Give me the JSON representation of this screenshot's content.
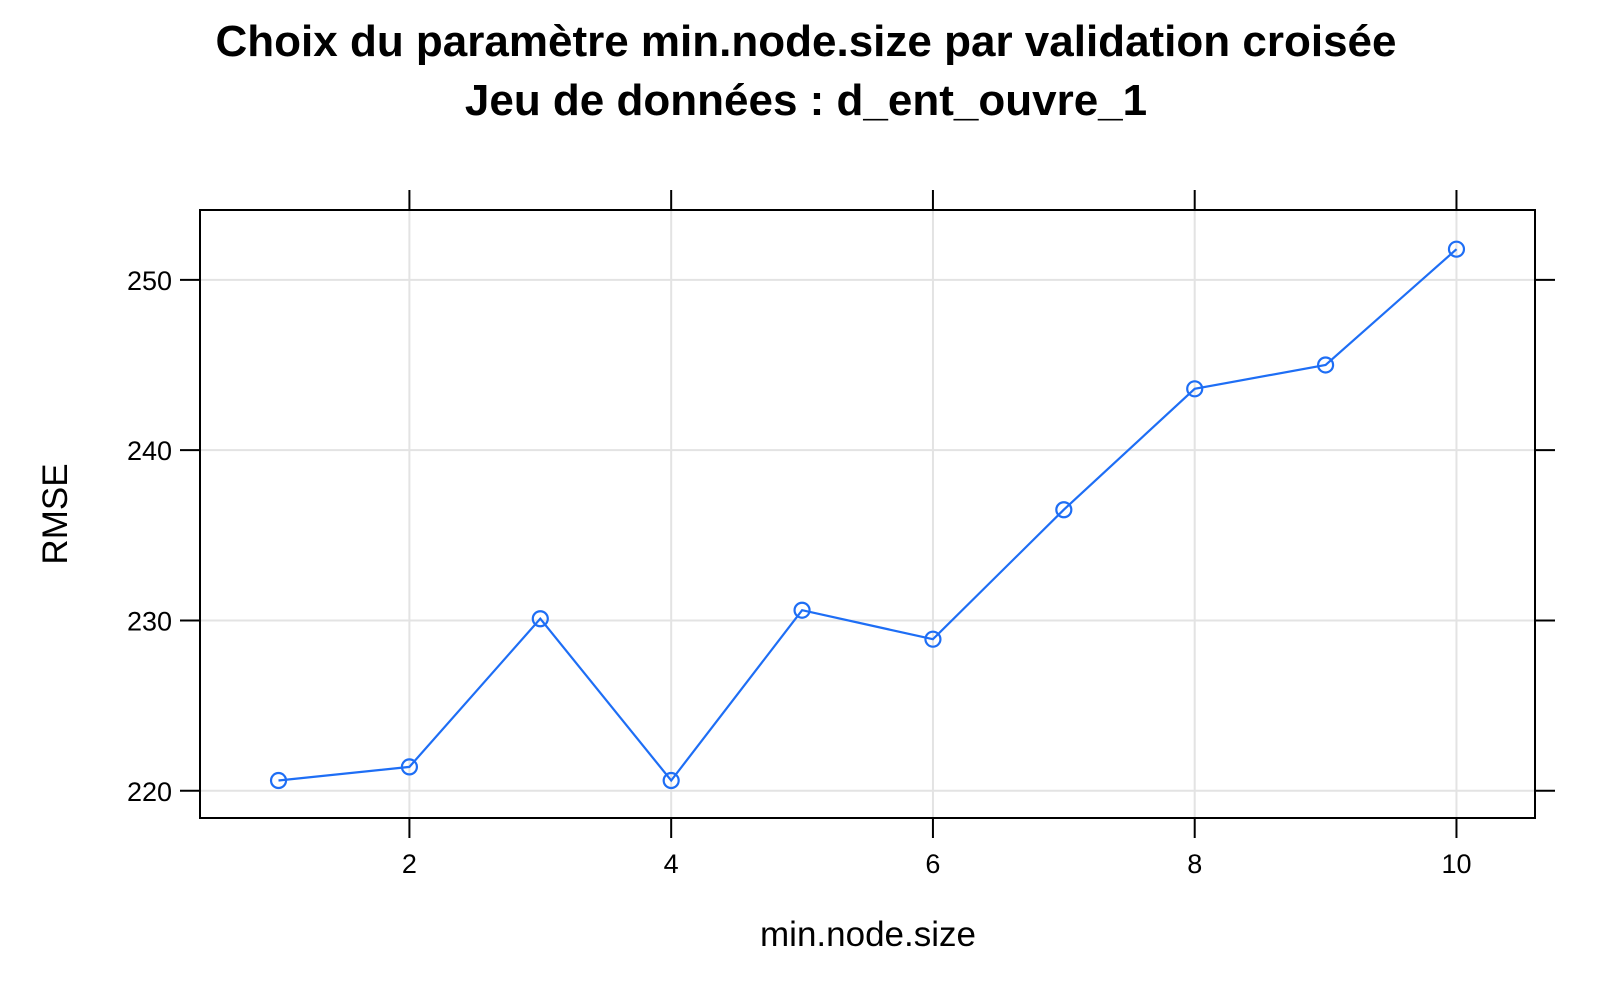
{
  "chart_data": {
    "type": "line",
    "title": "Choix du paramètre min.node.size par validation croisée",
    "subtitle": "Jeu de données : d_ent_ouvre_1",
    "xlabel": "min.node.size",
    "ylabel": "RMSE",
    "xlim": [
      0.4,
      10.6
    ],
    "ylim": [
      218.4,
      254.1
    ],
    "x_ticks": [
      2,
      4,
      6,
      8,
      10
    ],
    "y_ticks": [
      220,
      230,
      240,
      250
    ],
    "grid": true,
    "series": [
      {
        "x": [
          1,
          2,
          3,
          4,
          5,
          6,
          7,
          8,
          9,
          10
        ],
        "values": [
          220.6,
          221.4,
          230.1,
          220.6,
          230.6,
          228.9,
          236.5,
          243.6,
          245.0,
          251.8
        ],
        "color": "#1e6ef5",
        "marker": "open-circle"
      }
    ]
  }
}
